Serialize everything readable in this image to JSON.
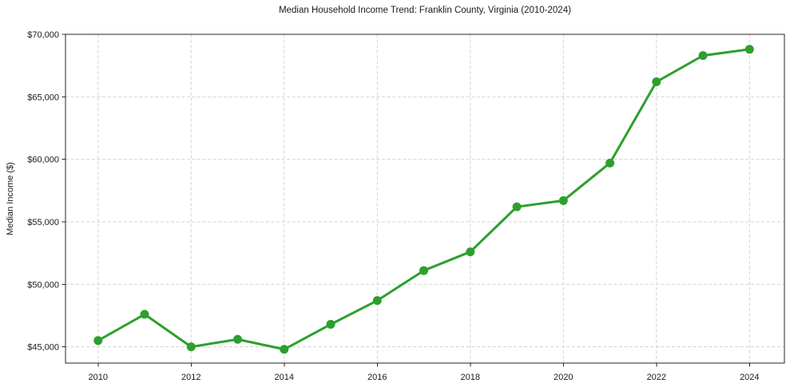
{
  "page": {
    "background": "#ffffff"
  },
  "chart_data": {
    "type": "line",
    "title": "Median Household Income Trend: Franklin County, Virginia (2010-2024)",
    "xlabel": "",
    "ylabel": "Median Income ($)",
    "x": [
      2010,
      2011,
      2012,
      2013,
      2014,
      2015,
      2016,
      2017,
      2018,
      2019,
      2020,
      2021,
      2022,
      2023,
      2024
    ],
    "series": [
      {
        "name": "Median Household Income",
        "color": "#2ca02c",
        "values": [
          45500,
          47600,
          45000,
          45600,
          44800,
          46800,
          48700,
          51100,
          52600,
          56200,
          56700,
          59700,
          66200,
          68300,
          68800
        ]
      }
    ],
    "xlim": [
      2009.3,
      2024.75
    ],
    "ylim": [
      43700,
      70000
    ],
    "xticks": {
      "values": [
        2010,
        2012,
        2014,
        2016,
        2018,
        2020,
        2022,
        2024
      ],
      "labels": [
        "2010",
        "2012",
        "2014",
        "2016",
        "2018",
        "2020",
        "2022",
        "2024"
      ]
    },
    "yticks": {
      "values": [
        45000,
        50000,
        55000,
        60000,
        65000,
        70000
      ],
      "labels": [
        "$45,000",
        "$50,000",
        "$55,000",
        "$60,000",
        "$65,000",
        "$70,000"
      ]
    },
    "grid": true,
    "grid_style": "dashed",
    "grid_color": "#d2d2d2",
    "spine_color": "#262626",
    "marker": "circle",
    "marker_size": 5.5,
    "line_width": 3,
    "legend": "none"
  }
}
